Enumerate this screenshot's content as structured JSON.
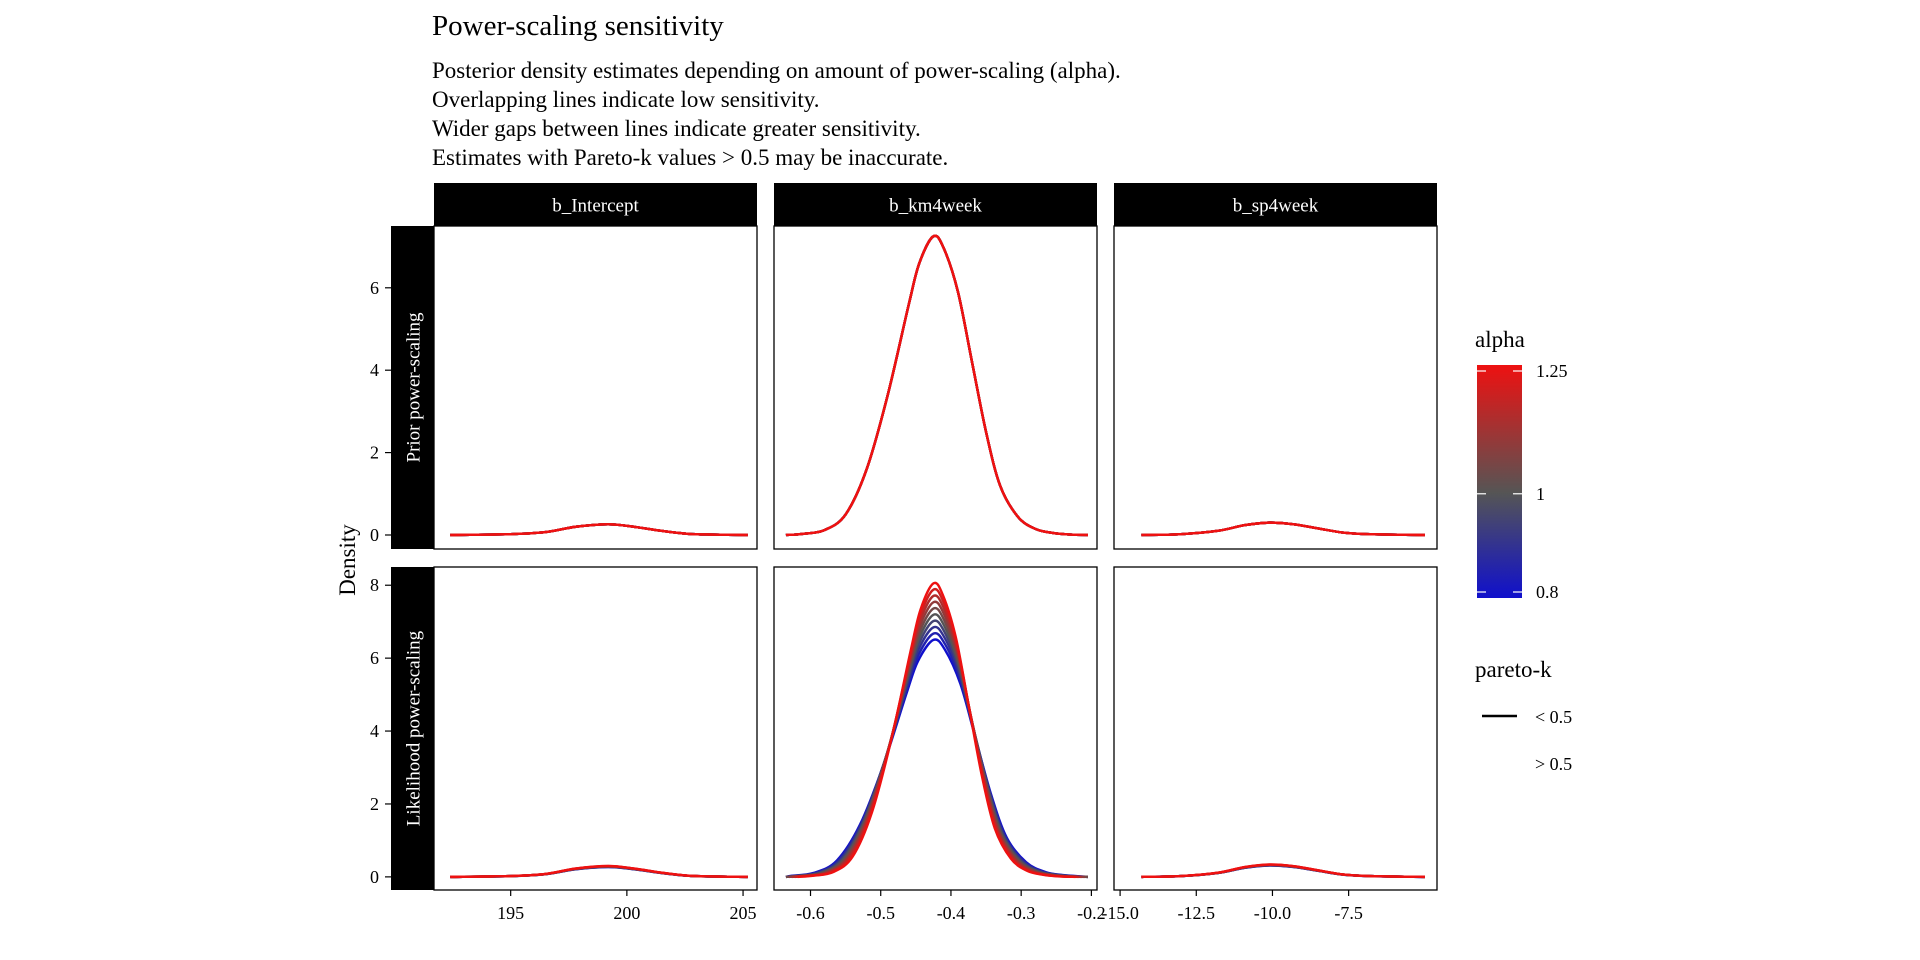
{
  "chart_data": {
    "type": "line",
    "title": "Power-scaling sensitivity",
    "subtitle": [
      "Posterior density estimates depending on amount of power-scaling (alpha).",
      "Overlapping lines indicate low sensitivity.",
      "Wider gaps between lines indicate greater sensitivity.",
      "Estimates with Pareto-k values > 0.5 may be inaccurate."
    ],
    "ylabel": "Density",
    "columns": [
      "b_Intercept",
      "b_km4week",
      "b_sp4week"
    ],
    "rows": [
      "Prior power-scaling",
      "Likelihood power-scaling"
    ],
    "x_axes": [
      {
        "lim": [
          191.7,
          205.6
        ],
        "ticks": [
          195,
          200,
          205
        ],
        "tick_labels": [
          "195",
          "200",
          "205"
        ]
      },
      {
        "lim": [
          -0.652,
          -0.192
        ],
        "ticks": [
          -0.6,
          -0.5,
          -0.4,
          -0.3,
          -0.2
        ],
        "tick_labels": [
          "-0.6",
          "-0.5",
          "-0.4",
          "-0.3",
          "-0.2"
        ]
      },
      {
        "lim": [
          -15.2,
          -4.6
        ],
        "ticks": [
          -15,
          -12.5,
          -10,
          -7.5
        ],
        "tick_labels": [
          "-15.0",
          "-12.5",
          "-10.0",
          "-7.5"
        ]
      }
    ],
    "y_axes": [
      {
        "lim": [
          -0.34,
          7.5
        ],
        "ticks": [
          0,
          2,
          4,
          6
        ],
        "tick_labels": [
          "0",
          "2",
          "4",
          "6"
        ]
      },
      {
        "lim": [
          -0.36,
          8.5
        ],
        "ticks": [
          0,
          2,
          4,
          6,
          8
        ],
        "tick_labels": [
          "0",
          "2",
          "4",
          "6",
          "8"
        ]
      }
    ],
    "alphas": [
      0.8,
      0.85,
      0.9,
      0.95,
      1.0,
      1.05,
      1.1,
      1.15,
      1.2,
      1.25
    ],
    "curve_domains": [
      [
        192.4,
        205.2
      ],
      [
        -0.635,
        -0.205
      ],
      [
        -14.3,
        -5.0
      ]
    ],
    "panels": [
      {
        "row": 0,
        "col": 0,
        "x": [
          192.4,
          195,
          196.5,
          197.8,
          199.2,
          200.3,
          201.5,
          202.6,
          203.7,
          205.2
        ],
        "y": [
          0,
          0.02,
          0.07,
          0.2,
          0.26,
          0.2,
          0.1,
          0.03,
          0.01,
          0
        ],
        "peak": [
          0.26,
          0.26
        ]
      },
      {
        "row": 0,
        "col": 1,
        "x": [
          -0.635,
          -0.61,
          -0.58,
          -0.55,
          -0.52,
          -0.49,
          -0.46,
          -0.445,
          -0.425,
          -0.41,
          -0.39,
          -0.37,
          -0.35,
          -0.33,
          -0.305,
          -0.28,
          -0.255,
          -0.23,
          -0.205
        ],
        "y": [
          0,
          0.03,
          0.12,
          0.5,
          1.6,
          3.4,
          5.6,
          6.6,
          7.25,
          6.95,
          5.9,
          4.2,
          2.5,
          1.2,
          0.45,
          0.15,
          0.05,
          0.01,
          0
        ],
        "peak": [
          7.25,
          7.25
        ]
      },
      {
        "row": 0,
        "col": 2,
        "x": [
          -14.3,
          -13,
          -11.8,
          -10.9,
          -10.1,
          -9.3,
          -8.5,
          -7.7,
          -6.8,
          -5.0
        ],
        "y": [
          0,
          0.02,
          0.1,
          0.24,
          0.3,
          0.26,
          0.16,
          0.06,
          0.02,
          0
        ],
        "peak": [
          0.3,
          0.3
        ]
      },
      {
        "row": 1,
        "col": 0,
        "x": [
          192.4,
          195,
          196.5,
          197.8,
          199.2,
          200.3,
          201.5,
          202.6,
          203.7,
          205.2
        ],
        "y": [
          0,
          0.02,
          0.07,
          0.2,
          0.26,
          0.2,
          0.1,
          0.03,
          0.01,
          0
        ],
        "peak": [
          0.27,
          0.3
        ]
      },
      {
        "row": 1,
        "col": 1,
        "x": [
          -0.635,
          -0.61,
          -0.58,
          -0.55,
          -0.52,
          -0.49,
          -0.46,
          -0.445,
          -0.425,
          -0.41,
          -0.39,
          -0.37,
          -0.35,
          -0.33,
          -0.305,
          -0.28,
          -0.255,
          -0.23,
          -0.205
        ],
        "y": [
          0,
          0.03,
          0.12,
          0.5,
          1.6,
          3.4,
          5.6,
          6.6,
          7.25,
          6.95,
          5.9,
          4.2,
          2.5,
          1.2,
          0.45,
          0.15,
          0.05,
          0.01,
          0
        ],
        "peak": [
          6.5,
          8.05
        ]
      },
      {
        "row": 1,
        "col": 2,
        "x": [
          -14.3,
          -13,
          -11.8,
          -10.9,
          -10.1,
          -9.3,
          -8.5,
          -7.7,
          -6.8,
          -5.0
        ],
        "y": [
          0,
          0.02,
          0.1,
          0.24,
          0.3,
          0.26,
          0.16,
          0.06,
          0.02,
          0
        ],
        "peak": [
          0.31,
          0.34
        ]
      }
    ],
    "legend": {
      "alpha": {
        "title": "alpha",
        "labels": [
          "1.25",
          "1",
          "0.8"
        ],
        "values": [
          1.25,
          1.0,
          0.8
        ],
        "range": [
          0.8,
          1.25
        ]
      },
      "pareto_k": {
        "title": "pareto-k",
        "items": [
          {
            "label": "< 0.5",
            "linetype": "solid"
          },
          {
            "label": "> 0.5",
            "linetype": "blank"
          }
        ]
      },
      "placement": "right"
    },
    "colors": {
      "low": "#1010cc",
      "mid": "#555555",
      "high": "#ee1111",
      "strip_bg": "#000000",
      "strip_text": "#ffffff"
    },
    "grid": false
  }
}
